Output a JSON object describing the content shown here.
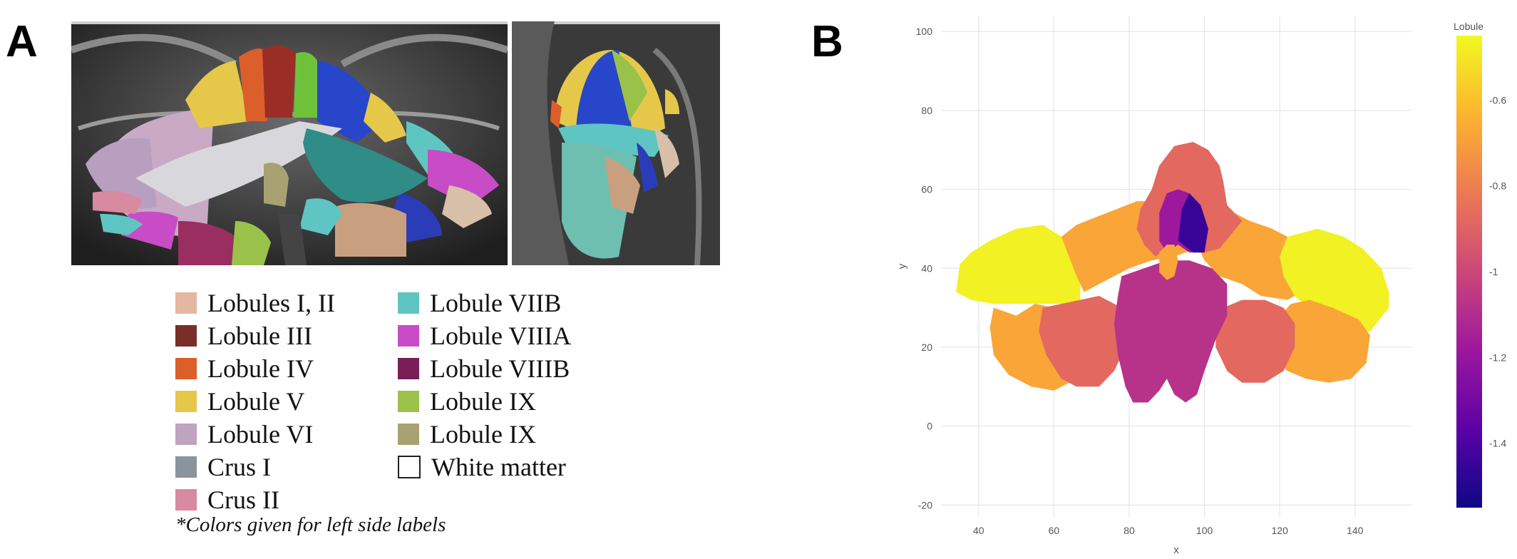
{
  "panels": {
    "a": "A",
    "b": "B"
  },
  "legend": {
    "items": [
      {
        "label": "Lobules I, II",
        "color": "#e3b7a0"
      },
      {
        "label": "Lobule III",
        "color": "#7a2e2a"
      },
      {
        "label": "Lobule IV",
        "color": "#dc5e2a"
      },
      {
        "label": "Lobule V",
        "color": "#e5c84a"
      },
      {
        "label": "Lobule VI",
        "color": "#bfa4bd"
      },
      {
        "label": "Crus I",
        "color": "#8a949c"
      },
      {
        "label": "Crus II",
        "color": "#d88aa0"
      },
      {
        "label": "Lobule VIIB",
        "color": "#5ec5c2"
      },
      {
        "label": "Lobule VIIIA",
        "color": "#c84cc5"
      },
      {
        "label": "Lobule VIIIB",
        "color": "#7a1e5a"
      },
      {
        "label": "Lobule IX",
        "color": "#9ac24a"
      },
      {
        "label": "Lobule IX",
        "color": "#a8a272"
      },
      {
        "label": "White matter",
        "color": "#ffffff"
      }
    ],
    "footnote": "*Colors given for left side labels"
  },
  "chart_data": {
    "type": "heatmap",
    "title": "",
    "xlabel": "x",
    "ylabel": "y",
    "x_ticks": [
      40,
      60,
      80,
      100,
      120,
      140
    ],
    "y_ticks": [
      -20,
      0,
      20,
      40,
      60,
      80,
      100
    ],
    "xlim": [
      30,
      155
    ],
    "ylim": [
      -23,
      104
    ],
    "colorbar": {
      "title": "Lobule",
      "ticks": [
        "-0.6",
        "-0.8",
        "-1",
        "-1.2",
        "-1.4"
      ],
      "tick_values": [
        -0.6,
        -0.8,
        -1.0,
        -1.2,
        -1.4
      ],
      "range": [
        -1.55,
        -0.45
      ],
      "colors": [
        "#0d0887",
        "#5c01a6",
        "#9c179e",
        "#cc4778",
        "#ed7953",
        "#fdb42f",
        "#f0f921"
      ]
    },
    "regions": [
      {
        "name": "outer-left",
        "value": -0.47,
        "points": [
          [
            35,
            41
          ],
          [
            38,
            44
          ],
          [
            43,
            47
          ],
          [
            50,
            50
          ],
          [
            57,
            51
          ],
          [
            62,
            48
          ],
          [
            64,
            44
          ],
          [
            67,
            37
          ],
          [
            67,
            31
          ],
          [
            60,
            31
          ],
          [
            52,
            31
          ],
          [
            44,
            31
          ],
          [
            38,
            32
          ],
          [
            34,
            34
          ]
        ]
      },
      {
        "name": "outer-right",
        "value": -0.47,
        "points": [
          [
            120,
            43
          ],
          [
            122,
            48
          ],
          [
            130,
            50
          ],
          [
            137,
            48
          ],
          [
            142,
            45
          ],
          [
            147,
            40
          ],
          [
            149,
            34
          ],
          [
            149,
            30
          ],
          [
            144,
            24
          ],
          [
            138,
            24
          ],
          [
            130,
            28
          ],
          [
            124,
            33
          ],
          [
            121,
            38
          ]
        ]
      },
      {
        "name": "upper-left",
        "value": -0.68,
        "points": [
          [
            62,
            48
          ],
          [
            66,
            51
          ],
          [
            74,
            54
          ],
          [
            82,
            57
          ],
          [
            90,
            57
          ],
          [
            98,
            58
          ],
          [
            102,
            56
          ],
          [
            102,
            50
          ],
          [
            98,
            45
          ],
          [
            92,
            43
          ],
          [
            86,
            42
          ],
          [
            80,
            40
          ],
          [
            74,
            37
          ],
          [
            68,
            34
          ],
          [
            66,
            38
          ]
        ]
      },
      {
        "name": "upper-right",
        "value": -0.68,
        "points": [
          [
            98,
            58
          ],
          [
            104,
            56
          ],
          [
            112,
            52
          ],
          [
            118,
            50
          ],
          [
            122,
            48
          ],
          [
            120,
            43
          ],
          [
            121,
            38
          ],
          [
            124,
            33
          ],
          [
            122,
            32
          ],
          [
            115,
            33
          ],
          [
            110,
            36
          ],
          [
            104,
            38
          ],
          [
            100,
            42
          ],
          [
            98,
            46
          ]
        ]
      },
      {
        "name": "crest",
        "value": -0.88,
        "points": [
          [
            86,
            60
          ],
          [
            88,
            66
          ],
          [
            92,
            71
          ],
          [
            97,
            72
          ],
          [
            101,
            70
          ],
          [
            104,
            66
          ],
          [
            105,
            62
          ],
          [
            106,
            56
          ],
          [
            110,
            52
          ],
          [
            104,
            45
          ],
          [
            100,
            44
          ],
          [
            96,
            46
          ],
          [
            93,
            47
          ],
          [
            90,
            45
          ],
          [
            87,
            43
          ],
          [
            84,
            46
          ],
          [
            82,
            50
          ],
          [
            83,
            55
          ]
        ]
      },
      {
        "name": "inner-violet",
        "value": -1.18,
        "points": [
          [
            88,
            47
          ],
          [
            88,
            54
          ],
          [
            90,
            59
          ],
          [
            93,
            60
          ],
          [
            96,
            59
          ],
          [
            99,
            55
          ],
          [
            101,
            50
          ],
          [
            100,
            44
          ],
          [
            96,
            44
          ],
          [
            93,
            46
          ],
          [
            90,
            44
          ]
        ]
      },
      {
        "name": "inner-deep",
        "value": -1.45,
        "points": [
          [
            93,
            47
          ],
          [
            94,
            55
          ],
          [
            96,
            59
          ],
          [
            99,
            56
          ],
          [
            101,
            50
          ],
          [
            100,
            44
          ],
          [
            97,
            44
          ]
        ]
      },
      {
        "name": "lower-left-orange",
        "value": -0.68,
        "points": [
          [
            44,
            30
          ],
          [
            50,
            28
          ],
          [
            55,
            31
          ],
          [
            60,
            30
          ],
          [
            64,
            30
          ],
          [
            68,
            24
          ],
          [
            68,
            18
          ],
          [
            66,
            12
          ],
          [
            60,
            9
          ],
          [
            54,
            10
          ],
          [
            48,
            13
          ],
          [
            44,
            18
          ],
          [
            43,
            25
          ]
        ]
      },
      {
        "name": "lower-right-orange",
        "value": -0.68,
        "points": [
          [
            123,
            31
          ],
          [
            128,
            32
          ],
          [
            134,
            30
          ],
          [
            141,
            27
          ],
          [
            144,
            23
          ],
          [
            143,
            16
          ],
          [
            139,
            12
          ],
          [
            133,
            11
          ],
          [
            127,
            12
          ],
          [
            122,
            14
          ],
          [
            118,
            18
          ],
          [
            117,
            24
          ],
          [
            120,
            28
          ]
        ]
      },
      {
        "name": "lower-left-pink",
        "value": -0.88,
        "points": [
          [
            57,
            30
          ],
          [
            62,
            31
          ],
          [
            67,
            32
          ],
          [
            72,
            33
          ],
          [
            78,
            30
          ],
          [
            80,
            26
          ],
          [
            79,
            20
          ],
          [
            76,
            14
          ],
          [
            72,
            10
          ],
          [
            66,
            10
          ],
          [
            62,
            12
          ],
          [
            58,
            18
          ],
          [
            56,
            24
          ]
        ]
      },
      {
        "name": "lower-right-pink",
        "value": -0.88,
        "points": [
          [
            105,
            30
          ],
          [
            110,
            32
          ],
          [
            116,
            32
          ],
          [
            121,
            30
          ],
          [
            124,
            26
          ],
          [
            124,
            20
          ],
          [
            121,
            14
          ],
          [
            116,
            11
          ],
          [
            110,
            11
          ],
          [
            106,
            14
          ],
          [
            103,
            20
          ],
          [
            103,
            26
          ]
        ]
      },
      {
        "name": "lower-center",
        "value": -1.08,
        "points": [
          [
            78,
            38
          ],
          [
            84,
            40
          ],
          [
            90,
            42
          ],
          [
            96,
            42
          ],
          [
            102,
            40
          ],
          [
            106,
            36
          ],
          [
            106,
            28
          ],
          [
            103,
            22
          ],
          [
            100,
            14
          ],
          [
            98,
            8
          ],
          [
            95,
            6
          ],
          [
            92,
            8
          ],
          [
            90,
            12
          ],
          [
            88,
            9
          ],
          [
            85,
            6
          ],
          [
            81,
            6
          ],
          [
            79,
            10
          ],
          [
            77,
            18
          ],
          [
            76,
            26
          ],
          [
            77,
            33
          ]
        ]
      },
      {
        "name": "vermis-orange",
        "value": -0.68,
        "points": [
          [
            88,
            44
          ],
          [
            88,
            39
          ],
          [
            90,
            37
          ],
          [
            92,
            38
          ],
          [
            93,
            42
          ],
          [
            92,
            46
          ],
          [
            90,
            46
          ]
        ]
      }
    ]
  }
}
